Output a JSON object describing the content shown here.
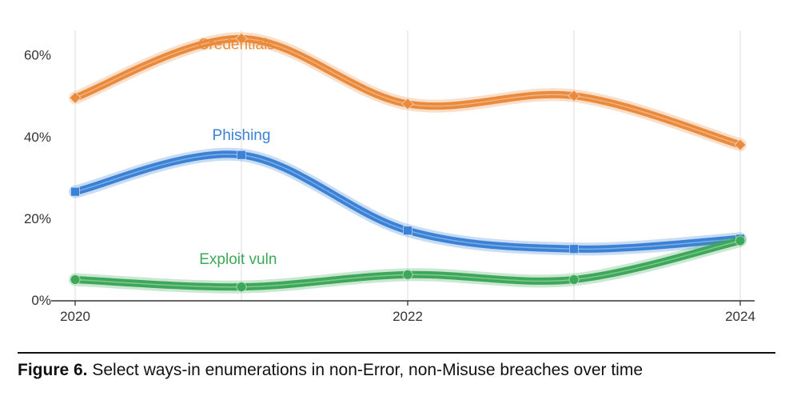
{
  "chart_data": {
    "type": "line",
    "x_ticks": [
      "2020",
      "2022",
      "2024"
    ],
    "y_ticks": [
      "0%",
      "20%",
      "40%",
      "60%"
    ],
    "x_range": [
      2020,
      2024
    ],
    "y_range": [
      0,
      66
    ],
    "grid": "vertical",
    "series": [
      {
        "name": "Credentials",
        "color": "#ea8a3c",
        "x": [
          2020,
          2021,
          2022,
          2023,
          2024
        ],
        "y": [
          49.5,
          64,
          48,
          50,
          38
        ]
      },
      {
        "name": "Phishing",
        "color": "#3b82d6",
        "x": [
          2020,
          2021,
          2022,
          2023,
          2024
        ],
        "y": [
          26.5,
          35.5,
          17,
          12.5,
          15
        ]
      },
      {
        "name": "Exploit vuln",
        "color": "#3ea85a",
        "x": [
          2020,
          2021,
          2022,
          2023,
          2024
        ],
        "y": [
          5,
          3.2,
          6.2,
          5,
          14.5
        ]
      }
    ]
  },
  "caption": {
    "label": "Figure 6.",
    "text": " Select ways-in enumerations in non-Error, non-Misuse breaches over time"
  }
}
